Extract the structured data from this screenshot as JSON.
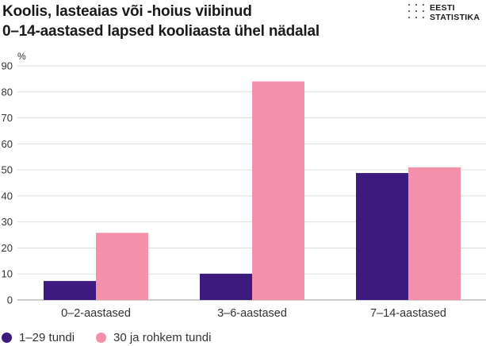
{
  "chart_data": {
    "type": "bar",
    "title_lines": [
      "Koolis, lasteaias või -hoius viibinud",
      "0–14-aastased lapsed kooliaasta ühel nädalal"
    ],
    "unit_label": "%",
    "categories": [
      "0–2-aastased",
      "3–6-aastased",
      "7–14-aastased"
    ],
    "series": [
      {
        "name": "1–29 tundi",
        "color": "#3d1a7e",
        "values": [
          7.3,
          10.1,
          48.8
        ]
      },
      {
        "name": "30 ja rohkem tundi",
        "color": "#f590ab",
        "values": [
          25.8,
          84.0,
          51.0
        ]
      }
    ],
    "ylim": [
      0,
      90
    ],
    "yticks": [
      0,
      10,
      20,
      30,
      40,
      50,
      60,
      70,
      80,
      90
    ],
    "grid": true,
    "legend_position": "bottom"
  },
  "logo": {
    "line1": "EESTI",
    "line2": "STATISTIKA"
  }
}
